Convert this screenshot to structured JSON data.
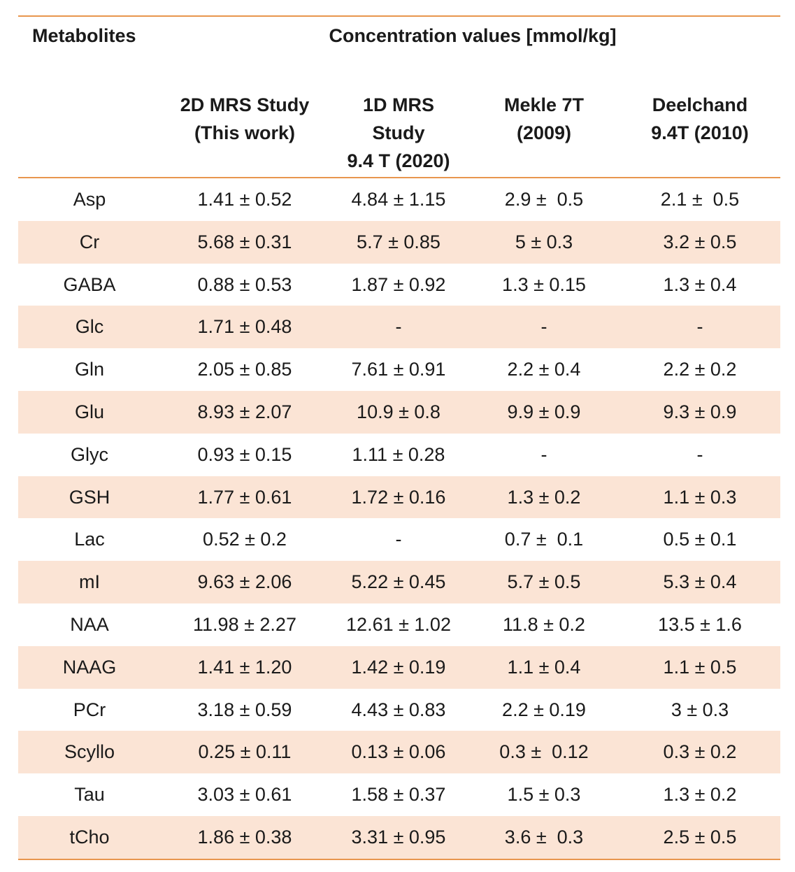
{
  "header": {
    "metabolites": "Metabolites",
    "concentration": "Concentration values [mmol/kg]"
  },
  "columns": [
    [
      "2D MRS Study",
      "(This work)"
    ],
    [
      "1D MRS",
      "Study",
      "9.4 T (2020)"
    ],
    [
      "Mekle 7T",
      "(2009)"
    ],
    [
      "Deelchand",
      "9.4T (2010)"
    ]
  ],
  "rows": [
    [
      "Asp",
      "1.41 ± 0.52",
      "4.84 ± 1.15",
      "2.9 ±  0.5",
      "2.1 ±  0.5"
    ],
    [
      "Cr",
      "5.68 ± 0.31",
      "5.7 ± 0.85",
      "5 ± 0.3",
      "3.2 ± 0.5"
    ],
    [
      "GABA",
      "0.88 ± 0.53",
      "1.87 ± 0.92",
      "1.3 ± 0.15",
      "1.3 ± 0.4"
    ],
    [
      "Glc",
      "1.71 ± 0.48",
      "-",
      "-",
      "-"
    ],
    [
      "Gln",
      "2.05 ± 0.85",
      "7.61 ± 0.91",
      "2.2 ± 0.4",
      "2.2 ± 0.2"
    ],
    [
      "Glu",
      "8.93 ± 2.07",
      "10.9 ± 0.8",
      "9.9 ± 0.9",
      "9.3 ± 0.9"
    ],
    [
      "Glyc",
      "0.93 ± 0.15",
      "1.11 ± 0.28",
      "-",
      "-"
    ],
    [
      "GSH",
      "1.77 ± 0.61",
      "1.72 ± 0.16",
      "1.3 ± 0.2",
      "1.1 ± 0.3"
    ],
    [
      "Lac",
      "0.52 ± 0.2",
      "-",
      "0.7 ±  0.1",
      "0.5 ± 0.1"
    ],
    [
      "mI",
      "9.63 ± 2.06",
      "5.22 ± 0.45",
      "5.7 ± 0.5",
      "5.3 ± 0.4"
    ],
    [
      "NAA",
      "11.98 ± 2.27",
      "12.61 ± 1.02",
      "11.8 ± 0.2",
      "13.5 ± 1.6"
    ],
    [
      "NAAG",
      "1.41 ± 1.20",
      "1.42 ± 0.19",
      "1.1 ± 0.4",
      "1.1 ± 0.5"
    ],
    [
      "PCr",
      "3.18 ± 0.59",
      "4.43 ± 0.83",
      "2.2 ± 0.19",
      "3 ± 0.3"
    ],
    [
      "Scyllo",
      "0.25 ± 0.11",
      "0.13 ± 0.06",
      "0.3 ±  0.12",
      "0.3 ± 0.2"
    ],
    [
      "Tau",
      "3.03 ± 0.61",
      "1.58 ± 0.37",
      "1.5 ± 0.3",
      "1.3 ± 0.2"
    ],
    [
      "tCho",
      "1.86 ± 0.38",
      "3.31 ± 0.95",
      "3.6 ±  0.3",
      "2.5 ± 0.5"
    ]
  ]
}
